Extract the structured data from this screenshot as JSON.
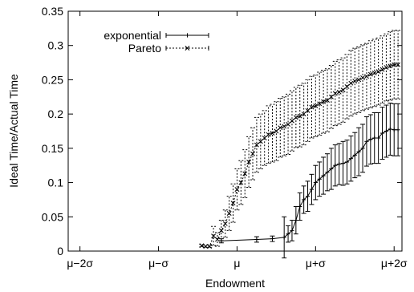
{
  "chart_data": {
    "type": "line",
    "xlabel": "Endowment",
    "ylabel": "Ideal Time/Actual Time",
    "x_ticks": [
      {
        "pos": -2,
        "label": "μ−2σ"
      },
      {
        "pos": -1,
        "label": "μ−σ"
      },
      {
        "pos": 0,
        "label": "μ"
      },
      {
        "pos": 1,
        "label": "μ+σ"
      },
      {
        "pos": 2,
        "label": "μ+2σ"
      }
    ],
    "y_ticks": [
      "0",
      "0.05",
      "0.1",
      "0.15",
      "0.2",
      "0.25",
      "0.3",
      "0.35"
    ],
    "xlim": [
      -2.15,
      2.1
    ],
    "ylim": [
      0,
      0.35
    ],
    "legend_position": "top-left",
    "series": [
      {
        "name": "exponential",
        "line_style": "solid",
        "marker": "+",
        "x": [
          -0.2,
          0.25,
          0.45,
          0.6,
          0.65,
          0.7,
          0.75,
          0.8,
          0.85,
          0.9,
          0.95,
          1.0,
          1.05,
          1.1,
          1.15,
          1.2,
          1.25,
          1.3,
          1.35,
          1.4,
          1.45,
          1.5,
          1.55,
          1.6,
          1.65,
          1.7,
          1.75,
          1.8,
          1.85,
          1.9,
          1.95,
          2.0,
          2.05
        ],
        "y": [
          0.015,
          0.017,
          0.018,
          0.02,
          0.025,
          0.03,
          0.045,
          0.065,
          0.075,
          0.08,
          0.09,
          0.1,
          0.105,
          0.11,
          0.115,
          0.12,
          0.125,
          0.127,
          0.128,
          0.13,
          0.135,
          0.14,
          0.145,
          0.15,
          0.16,
          0.163,
          0.165,
          0.165,
          0.172,
          0.175,
          0.178,
          0.177,
          0.177
        ],
        "err": [
          0.003,
          0.004,
          0.004,
          0.03,
          0.012,
          0.015,
          0.02,
          0.02,
          0.02,
          0.022,
          0.022,
          0.025,
          0.025,
          0.027,
          0.027,
          0.03,
          0.03,
          0.03,
          0.032,
          0.032,
          0.033,
          0.033,
          0.035,
          0.035,
          0.036,
          0.036,
          0.037,
          0.037,
          0.038,
          0.038,
          0.038,
          0.038,
          0.038
        ]
      },
      {
        "name": "Pareto",
        "line_style": "dotted",
        "marker": "x",
        "x": [
          -0.45,
          -0.4,
          -0.35,
          -0.3,
          -0.25,
          -0.2,
          -0.15,
          -0.1,
          -0.05,
          0.0,
          0.05,
          0.1,
          0.15,
          0.2,
          0.25,
          0.3,
          0.35,
          0.4,
          0.45,
          0.5,
          0.55,
          0.6,
          0.65,
          0.7,
          0.75,
          0.8,
          0.85,
          0.9,
          0.95,
          1.0,
          1.05,
          1.1,
          1.15,
          1.2,
          1.25,
          1.3,
          1.35,
          1.4,
          1.45,
          1.5,
          1.55,
          1.6,
          1.65,
          1.7,
          1.75,
          1.8,
          1.85,
          1.9,
          1.95,
          2.0,
          2.05
        ],
        "y": [
          0.008,
          0.007,
          0.007,
          0.022,
          0.017,
          0.03,
          0.04,
          0.055,
          0.07,
          0.09,
          0.1,
          0.113,
          0.13,
          0.142,
          0.155,
          0.16,
          0.165,
          0.17,
          0.172,
          0.175,
          0.18,
          0.182,
          0.185,
          0.19,
          0.195,
          0.197,
          0.2,
          0.205,
          0.21,
          0.212,
          0.215,
          0.218,
          0.22,
          0.225,
          0.23,
          0.232,
          0.235,
          0.24,
          0.245,
          0.248,
          0.25,
          0.253,
          0.255,
          0.258,
          0.26,
          0.262,
          0.265,
          0.268,
          0.27,
          0.272,
          0.272
        ],
        "err": [
          0.002,
          0.002,
          0.002,
          0.014,
          0.01,
          0.015,
          0.02,
          0.025,
          0.028,
          0.03,
          0.032,
          0.035,
          0.037,
          0.038,
          0.04,
          0.04,
          0.04,
          0.042,
          0.042,
          0.043,
          0.043,
          0.043,
          0.044,
          0.044,
          0.044,
          0.045,
          0.045,
          0.045,
          0.045,
          0.045,
          0.046,
          0.046,
          0.046,
          0.046,
          0.047,
          0.047,
          0.047,
          0.047,
          0.048,
          0.048,
          0.048,
          0.048,
          0.048,
          0.049,
          0.049,
          0.049,
          0.049,
          0.049,
          0.05,
          0.05,
          0.05
        ]
      }
    ]
  }
}
